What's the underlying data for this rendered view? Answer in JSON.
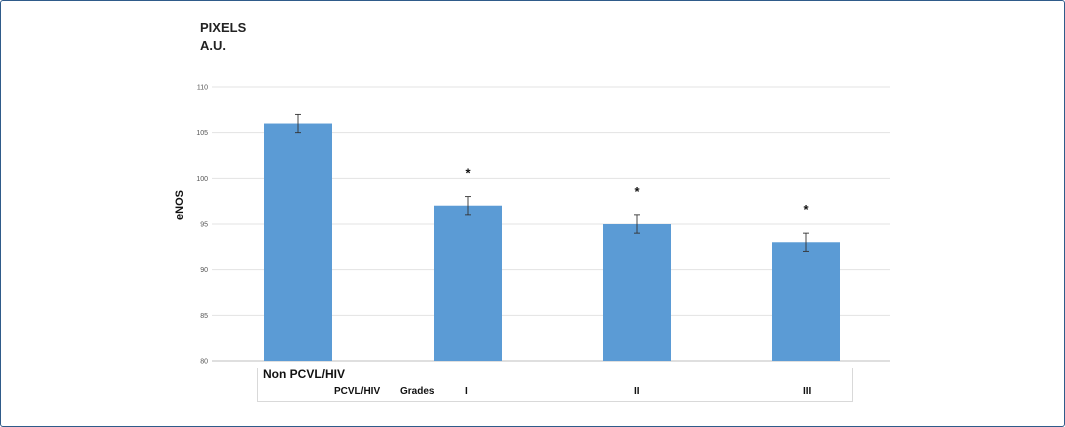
{
  "chart_data": {
    "type": "bar",
    "unit_line1": "PIXELS",
    "unit_line2": "A.U.",
    "ylabel": "eNOS",
    "ylim": [
      80,
      110
    ],
    "yticks": [
      80,
      85,
      90,
      95,
      100,
      105,
      110
    ],
    "categories": [
      "Non PCVL/HIV",
      "I",
      "II",
      "III"
    ],
    "group_labels": [
      "PCVL/HIV",
      "Grades"
    ],
    "values": [
      106,
      97,
      95,
      93
    ],
    "errors": [
      1,
      1,
      1,
      1
    ],
    "annotations": [
      "",
      "*",
      "*",
      "*"
    ],
    "bar_color": "#5b9bd5",
    "grid": true
  }
}
